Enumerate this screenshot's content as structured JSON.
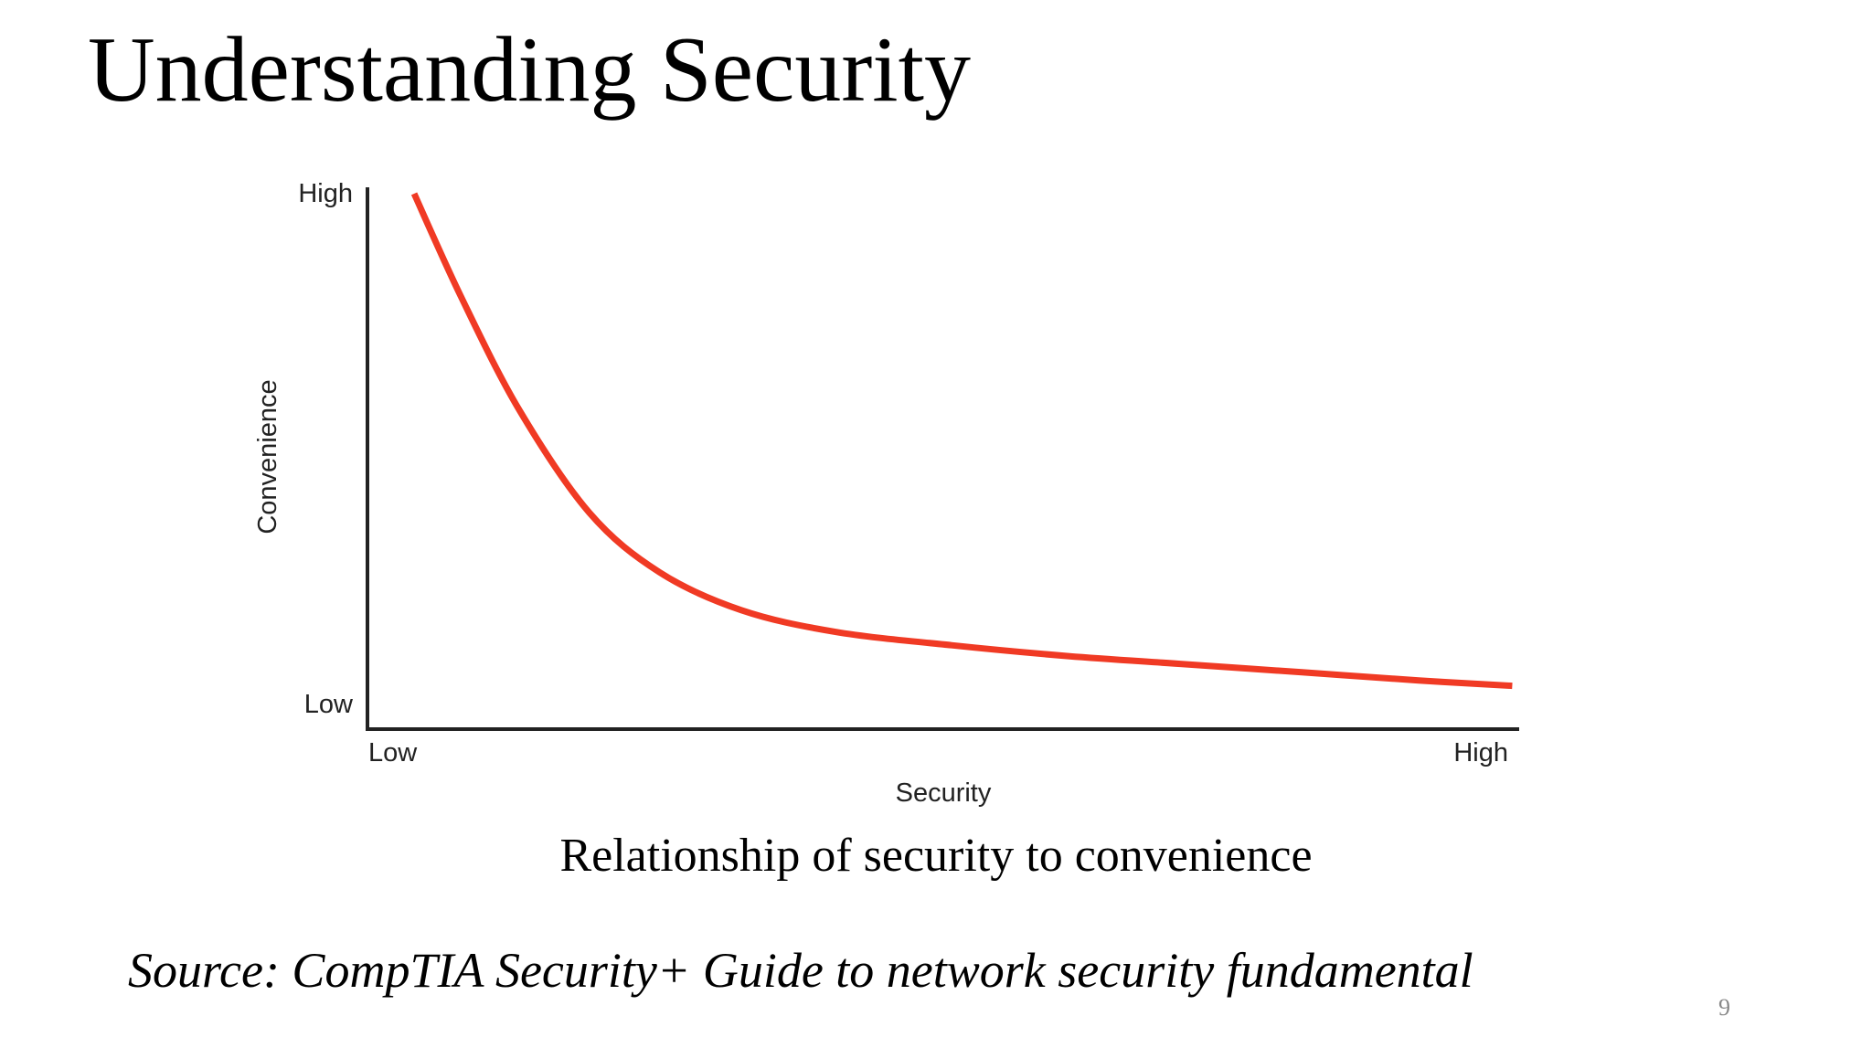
{
  "slide": {
    "title": "Understanding Security",
    "caption": "Relationship of security to convenience",
    "source": "Source: CompTIA Security+ Guide to network security fundamental",
    "page_number": "9"
  },
  "chart_data": {
    "type": "line",
    "xlabel": "Security",
    "ylabel": "Convenience",
    "x_ticks": [
      "Low",
      "High"
    ],
    "y_ticks": [
      "High",
      "Low"
    ],
    "xlim": [
      0,
      1
    ],
    "ylim": [
      0,
      1
    ],
    "grid": false,
    "legend": "none",
    "series": [
      {
        "color": "#f03a24",
        "x": [
          0.04,
          0.08,
          0.13,
          0.19,
          0.25,
          0.32,
          0.4,
          0.5,
          0.6,
          0.7,
          0.8,
          0.9,
          0.98
        ],
        "y": [
          0.99,
          0.8,
          0.59,
          0.4,
          0.29,
          0.22,
          0.18,
          0.155,
          0.135,
          0.12,
          0.105,
          0.09,
          0.08
        ]
      }
    ]
  }
}
